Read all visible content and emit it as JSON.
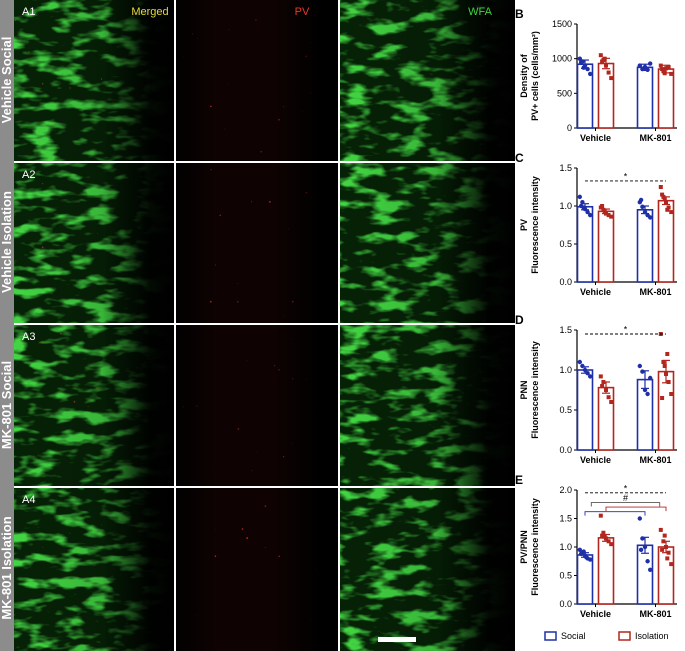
{
  "micrographs": {
    "columns": [
      {
        "label": "Merged",
        "color": "#e8d63a"
      },
      {
        "label": "PV",
        "color": "#e23a2a"
      },
      {
        "label": "WFA",
        "color": "#3fd43f"
      }
    ],
    "rows": [
      {
        "label": "Vehicle Social",
        "tag": "A1"
      },
      {
        "label": "Vehicle Isolation",
        "tag": "A2"
      },
      {
        "label": "MK-801 Social",
        "tag": "A3"
      },
      {
        "label": "MK-801 Isolation",
        "tag": "A4"
      }
    ]
  },
  "legend": {
    "social": "Social",
    "isolation": "Isolation",
    "social_color": "#1f2fa8",
    "isolation_color": "#b3261e"
  },
  "chart_data": [
    {
      "panel": "B",
      "type": "bar",
      "ylabel_line1": "Density of",
      "ylabel_line2": "PV+ cells (cells/mm²)",
      "ylim": [
        0,
        1500
      ],
      "yticks": [
        0,
        500,
        1000,
        1500
      ],
      "ytick_labels": [
        "0",
        "500",
        "1000",
        "1500"
      ],
      "categories": [
        "Vehicle",
        "MK-801"
      ],
      "series": [
        {
          "group": "social",
          "values": [
            920,
            875
          ],
          "err": [
            60,
            45
          ],
          "points": [
            [
              1000,
              960,
              900,
              850,
              780,
              950,
              870
            ],
            [
              900,
              850,
              880,
              840,
              930
            ]
          ]
        },
        {
          "group": "isolation",
          "values": [
            930,
            850
          ],
          "err": [
            75,
            55
          ],
          "points": [
            [
              1050,
              980,
              900,
              800,
              720,
              960,
              1000
            ],
            [
              900,
              820,
              860,
              880,
              780,
              850,
              790
            ]
          ]
        }
      ],
      "significance": []
    },
    {
      "panel": "C",
      "type": "bar",
      "ylabel_line1": "PV",
      "ylabel_line2": "Fluorescence intensity",
      "ylim": [
        0,
        1.5
      ],
      "yticks": [
        0,
        0.5,
        1.0,
        1.5
      ],
      "ytick_labels": [
        "0.0",
        "0.5",
        "1.0",
        "1.5"
      ],
      "categories": [
        "Vehicle",
        "MK-801"
      ],
      "series": [
        {
          "group": "social",
          "values": [
            0.99,
            0.95
          ],
          "err": [
            0.04,
            0.05
          ],
          "points": [
            [
              1.12,
              1.05,
              0.96,
              0.92,
              0.88,
              1.0,
              0.98
            ],
            [
              1.05,
              0.99,
              0.92,
              0.88,
              0.85,
              1.08
            ]
          ]
        },
        {
          "group": "isolation",
          "values": [
            0.93,
            1.07
          ],
          "err": [
            0.03,
            0.05
          ],
          "points": [
            [
              0.98,
              0.95,
              0.9,
              0.88,
              0.86,
              1.0,
              0.92
            ],
            [
              1.25,
              1.12,
              1.05,
              0.98,
              0.92,
              1.15,
              1.1,
              0.95
            ]
          ]
        }
      ],
      "significance": [
        {
          "label": "*",
          "line_y": 1.33,
          "from_bar": 0,
          "to_bar": 3,
          "style": "dashed",
          "color": "#000000"
        }
      ]
    },
    {
      "panel": "D",
      "type": "bar",
      "ylabel_line1": "PNN",
      "ylabel_line2": "Fluorescence intensity",
      "ylim": [
        0,
        1.5
      ],
      "yticks": [
        0,
        0.5,
        1.0,
        1.5
      ],
      "ytick_labels": [
        "0.0",
        "0.5",
        "1.0",
        "1.5"
      ],
      "categories": [
        "Vehicle",
        "MK-801"
      ],
      "series": [
        {
          "group": "social",
          "values": [
            1.0,
            0.88
          ],
          "err": [
            0.04,
            0.11
          ],
          "points": [
            [
              1.1,
              1.05,
              1.0,
              0.96,
              0.92
            ],
            [
              1.05,
              0.98,
              0.75,
              0.7,
              0.9
            ]
          ]
        },
        {
          "group": "isolation",
          "values": [
            0.78,
            0.98
          ],
          "err": [
            0.07,
            0.14
          ],
          "points": [
            [
              0.92,
              0.85,
              0.75,
              0.66,
              0.6,
              0.8
            ],
            [
              1.45,
              1.1,
              0.95,
              0.85,
              0.7,
              0.65,
              1.05,
              1.2
            ]
          ]
        }
      ],
      "significance": [
        {
          "label": "*",
          "line_y": 1.45,
          "from_bar": 0,
          "to_bar": 3,
          "style": "dashed",
          "color": "#000000"
        }
      ]
    },
    {
      "panel": "E",
      "type": "bar",
      "ylabel_line1": "PV/PNN",
      "ylabel_line2": "Fluorescence intensity",
      "ylim": [
        0,
        2.0
      ],
      "yticks": [
        0,
        0.5,
        1.0,
        1.5,
        2.0
      ],
      "ytick_labels": [
        "0.0",
        "0.5",
        "1.0",
        "1.5",
        "2.0"
      ],
      "categories": [
        "Vehicle",
        "MK-801"
      ],
      "series": [
        {
          "group": "social",
          "values": [
            0.86,
            1.03
          ],
          "err": [
            0.04,
            0.14
          ],
          "points": [
            [
              0.95,
              0.9,
              0.85,
              0.8,
              0.78,
              0.88,
              0.92,
              0.82
            ],
            [
              1.5,
              1.15,
              1.0,
              0.75,
              0.6,
              0.95
            ]
          ]
        },
        {
          "group": "isolation",
          "values": [
            1.16,
            1.0
          ],
          "err": [
            0.06,
            0.1
          ],
          "points": [
            [
              1.55,
              1.25,
              1.15,
              1.1,
              1.05,
              1.2,
              1.18
            ],
            [
              1.3,
              1.1,
              1.0,
              0.9,
              0.7,
              0.95,
              1.2,
              0.8
            ]
          ]
        }
      ],
      "significance": [
        {
          "label": "*",
          "line_y": 1.95,
          "from_bar": 0,
          "to_bar": 3,
          "style": "dashed",
          "color": "#000000"
        },
        {
          "label": "#",
          "line_y": 1.78,
          "from_bar": 0.3,
          "to_bar": 2.7,
          "style": "bracket-up",
          "color": "#555555"
        },
        {
          "label": "",
          "line_y": 1.62,
          "from_bar": 0,
          "to_bar": 2,
          "style": "bracket-up",
          "color": "#1f2fa8"
        },
        {
          "label": "",
          "line_y": 1.7,
          "from_bar": 1,
          "to_bar": 3,
          "style": "bracket-up",
          "color": "#b3261e"
        }
      ]
    }
  ]
}
